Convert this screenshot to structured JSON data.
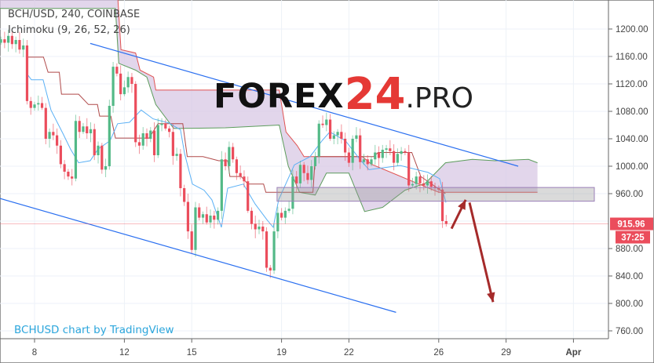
{
  "header": {
    "symbol_line": "BCH/USD, 240, COINBASE",
    "indicator_line": "Ichimoku (9, 26, 52, 26)"
  },
  "watermark": {
    "part1": "FOREX",
    "part2": "24",
    "part3": ".PRO"
  },
  "credit": "BCHUSD chart by TradingView",
  "colors": {
    "up": "#53b987",
    "down": "#eb4d5c",
    "tenkan": "#5ab0f5",
    "kijun": "#b04a4a",
    "span_a": "#5c9c5c",
    "span_b": "#e05252",
    "cloud": "#d8c8e4",
    "channel": "#2a6ff0",
    "arrow": "#a52a2a",
    "zone": "#9b7fb8",
    "price_tag": "#eb4d5c"
  },
  "chart_data": {
    "type": "candlestick",
    "title": "BCH/USD, 240, COINBASE",
    "interval_minutes": 240,
    "first_candle_day_of_march": 6.5,
    "first_open": 1180,
    "close": [
      1185,
      1180,
      1190,
      1178,
      1184,
      1170,
      1176,
      1095,
      1085,
      1090,
      1092,
      1085,
      1040,
      1050,
      1045,
      1030,
      1003,
      992,
      985,
      982,
      1066,
      1050,
      1058,
      1048,
      1054,
      1016,
      1030,
      995,
      1000,
      1088,
      1145,
      1135,
      1105,
      1115,
      1130,
      1120,
      1035,
      1030,
      1048,
      1040,
      1052,
      1016,
      1060,
      1062,
      1055,
      1050,
      1015,
      1018,
      968,
      948,
      905,
      878,
      940,
      925,
      930,
      918,
      928,
      922,
      935,
      1010,
      1000,
      1028,
      1010,
      990,
      985,
      978,
      935,
      916,
      908,
      912,
      905,
      852,
      848,
      905,
      932,
      925,
      935,
      938,
      985,
      975,
      1002,
      990,
      980,
      1000,
      1014,
      1062,
      1060,
      1068,
      1040,
      1045,
      1050,
      1040,
      1020,
      1005,
      1040,
      1045,
      1006,
      1010,
      1003,
      1010,
      1020,
      1012,
      1024,
      1026,
      1022,
      1005,
      1018,
      1022,
      1020,
      972,
      974,
      985,
      975,
      972,
      978,
      970,
      968,
      966,
      920,
      916
    ],
    "ylim": [
      740,
      1240
    ],
    "y_ticks": [
      "1200.00",
      "1160.00",
      "1120.00",
      "1080.00",
      "1040.00",
      "1000.00",
      "960.00",
      "880.00",
      "840.00",
      "800.00",
      "760.00"
    ],
    "x_ticks": [
      {
        "label": "8",
        "day": 8
      },
      {
        "label": "12",
        "day": 12
      },
      {
        "label": "15",
        "day": 15
      },
      {
        "label": "19",
        "day": 19
      },
      {
        "label": "22",
        "day": 22
      },
      {
        "label": "26",
        "day": 26
      },
      {
        "label": "29",
        "day": 29
      },
      {
        "label": "Apr",
        "day": 32
      }
    ],
    "last_price": "915.96",
    "countdown": "37:25",
    "ichimoku": {
      "tenkan": [
        [
          7.68,
          1134
        ],
        [
          7.86,
          1126
        ],
        [
          8.38,
          1126
        ],
        [
          8.73,
          1082
        ],
        [
          9.26,
          1048
        ],
        [
          9.6,
          1025
        ],
        [
          9.96,
          1005
        ],
        [
          10.48,
          1008
        ],
        [
          10.83,
          1025
        ],
        [
          11.36,
          1037
        ],
        [
          11.7,
          1062
        ],
        [
          12.23,
          1064
        ],
        [
          12.75,
          1082
        ],
        [
          13.28,
          1069
        ],
        [
          13.98,
          1063
        ],
        [
          14.5,
          1053
        ],
        [
          14.68,
          1019
        ],
        [
          15.03,
          974
        ],
        [
          15.55,
          965
        ],
        [
          15.9,
          951
        ],
        [
          16.32,
          911
        ],
        [
          16.6,
          968
        ],
        [
          17.3,
          974
        ],
        [
          17.82,
          945
        ],
        [
          18.35,
          922
        ],
        [
          18.63,
          911
        ],
        [
          18.87,
          951
        ],
        [
          19.57,
          1002
        ],
        [
          20.27,
          1014
        ],
        [
          20.8,
          1037
        ],
        [
          21.15,
          1050
        ],
        [
          21.85,
          1037
        ],
        [
          22.54,
          1008
        ],
        [
          22.9,
          995
        ],
        [
          24.29,
          1001
        ],
        [
          25.52,
          991
        ],
        [
          26.04,
          982
        ],
        [
          26.32,
          947
        ]
      ],
      "kijun": [
        [
          7.7,
          1159
        ],
        [
          8.4,
          1159
        ],
        [
          8.6,
          1137
        ],
        [
          9.1,
          1137
        ],
        [
          9.2,
          1105
        ],
        [
          9.96,
          1105
        ],
        [
          10.4,
          1090
        ],
        [
          10.8,
          1090
        ],
        [
          10.9,
          1073
        ],
        [
          11.4,
          1073
        ],
        [
          11.6,
          1041
        ],
        [
          13.1,
          1041
        ],
        [
          13.5,
          1062
        ],
        [
          14.6,
          1062
        ],
        [
          14.8,
          1014
        ],
        [
          15.5,
          1014
        ],
        [
          16.2,
          1008
        ],
        [
          16.6,
          1008
        ],
        [
          16.7,
          985
        ],
        [
          17.2,
          985
        ],
        [
          17.5,
          974
        ],
        [
          18.2,
          974
        ],
        [
          18.3,
          962
        ],
        [
          20.4,
          962
        ],
        [
          20.5,
          1014
        ],
        [
          23.1,
          1014
        ],
        [
          23.3,
          1020
        ],
        [
          24.8,
          1020
        ],
        [
          25.2,
          985
        ],
        [
          26.3,
          960
        ]
      ],
      "span_a": [
        [
          6.46,
          1230
        ],
        [
          11.6,
          1230
        ],
        [
          11.75,
          1150
        ],
        [
          12.5,
          1140
        ],
        [
          13.0,
          1130
        ],
        [
          13.4,
          1090
        ],
        [
          14.2,
          1055
        ],
        [
          16.5,
          1056
        ],
        [
          18.9,
          1060
        ],
        [
          19.3,
          1000
        ],
        [
          19.8,
          962
        ],
        [
          20.5,
          958
        ],
        [
          21.0,
          990
        ],
        [
          22.0,
          990
        ],
        [
          22.7,
          934
        ],
        [
          23.5,
          940
        ],
        [
          24.5,
          965
        ],
        [
          25.4,
          975
        ],
        [
          26.3,
          1005
        ],
        [
          27.5,
          1010
        ],
        [
          28.5,
          1008
        ],
        [
          30.0,
          1010
        ],
        [
          30.4,
          1005
        ]
      ],
      "span_b": [
        [
          6.46,
          1250
        ],
        [
          11.7,
          1250
        ],
        [
          11.85,
          1170
        ],
        [
          12.5,
          1165
        ],
        [
          12.7,
          1140
        ],
        [
          13.3,
          1130
        ],
        [
          13.4,
          1111
        ],
        [
          18.9,
          1111
        ],
        [
          19.2,
          1050
        ],
        [
          19.7,
          1030
        ],
        [
          20.0,
          1014
        ],
        [
          22.6,
          1014
        ],
        [
          23.0,
          1003
        ],
        [
          26.0,
          962
        ],
        [
          30.4,
          962
        ]
      ]
    },
    "annotations": {
      "channel_upper": [
        [
          10.48,
          1179
        ],
        [
          29.54,
          1000
        ]
      ],
      "channel_lower": [
        [
          6.46,
          953
        ],
        [
          24.1,
          787
        ]
      ],
      "zone": {
        "from_day": 18.8,
        "to_day": 32.93,
        "top": 969,
        "bottom": 949
      },
      "arrow_up": [
        [
          26.57,
          909
        ],
        [
          27.2,
          951
        ]
      ],
      "arrow_down": [
        [
          27.37,
          947
        ],
        [
          28.42,
          802
        ]
      ]
    }
  }
}
